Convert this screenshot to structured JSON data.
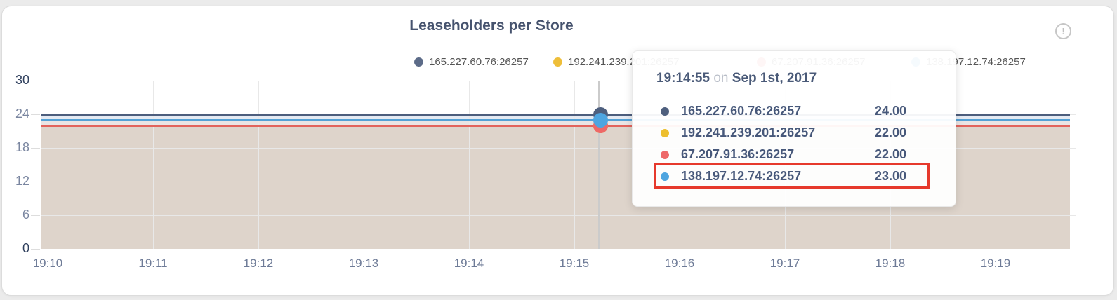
{
  "panel": {
    "title": "Leaseholders per Store",
    "info_icon_glyph": "!"
  },
  "legend": {
    "items": [
      {
        "label": "165.227.60.76:26257",
        "color": "#5c6b88"
      },
      {
        "label": "192.241.239.201:26257",
        "color": "#eebe39"
      },
      {
        "label": "67.207.91.36:26257",
        "color": "#ea6a65"
      },
      {
        "label": "138.197.12.74:26257",
        "color": "#58a7dd"
      }
    ]
  },
  "tooltip": {
    "time": "19:14:55",
    "connector": "on",
    "date": "Sep 1st, 2017",
    "highlight_color": "#e6392c",
    "rows": [
      {
        "label": "165.227.60.76:26257",
        "value": "24.00",
        "color": "#4e5f7e",
        "highlighted": false
      },
      {
        "label": "192.241.239.201:26257",
        "value": "22.00",
        "color": "#edbf2e",
        "highlighted": false
      },
      {
        "label": "67.207.91.36:26257",
        "value": "22.00",
        "color": "#ee6868",
        "highlighted": false
      },
      {
        "label": "138.197.12.74:26257",
        "value": "23.00",
        "color": "#4ea5e0",
        "highlighted": true
      }
    ]
  },
  "chart_data": {
    "type": "line",
    "title": "Leaseholders per Store",
    "x_ticks": [
      "19:10",
      "19:11",
      "19:12",
      "19:13",
      "19:14",
      "19:15",
      "19:16",
      "19:17",
      "19:18",
      "19:19"
    ],
    "y_ticks": [
      "30",
      "24",
      "18",
      "12",
      "6",
      "0"
    ],
    "ylim": [
      0,
      30
    ],
    "grid": true,
    "legend_position": "top",
    "series": [
      {
        "name": "165.227.60.76:26257",
        "color": "#4d5e7d",
        "values": [
          24,
          24,
          24,
          24,
          24,
          24,
          24,
          24,
          24,
          24
        ]
      },
      {
        "name": "192.241.239.201:26257",
        "color": "#eebe39",
        "values": [
          22,
          22,
          22,
          22,
          22,
          22,
          22,
          22,
          22,
          22
        ]
      },
      {
        "name": "67.207.91.36:26257",
        "color": "#e2635c",
        "values": [
          22,
          22,
          22,
          22,
          22,
          22,
          22,
          22,
          22,
          22
        ]
      },
      {
        "name": "138.197.12.74:26257",
        "color": "#54a1d5",
        "values": [
          23,
          23,
          23,
          23,
          23,
          23,
          23,
          23,
          23,
          23
        ]
      }
    ],
    "hover": {
      "time": "19:14:55",
      "values": [
        24,
        22,
        22,
        23
      ]
    }
  }
}
